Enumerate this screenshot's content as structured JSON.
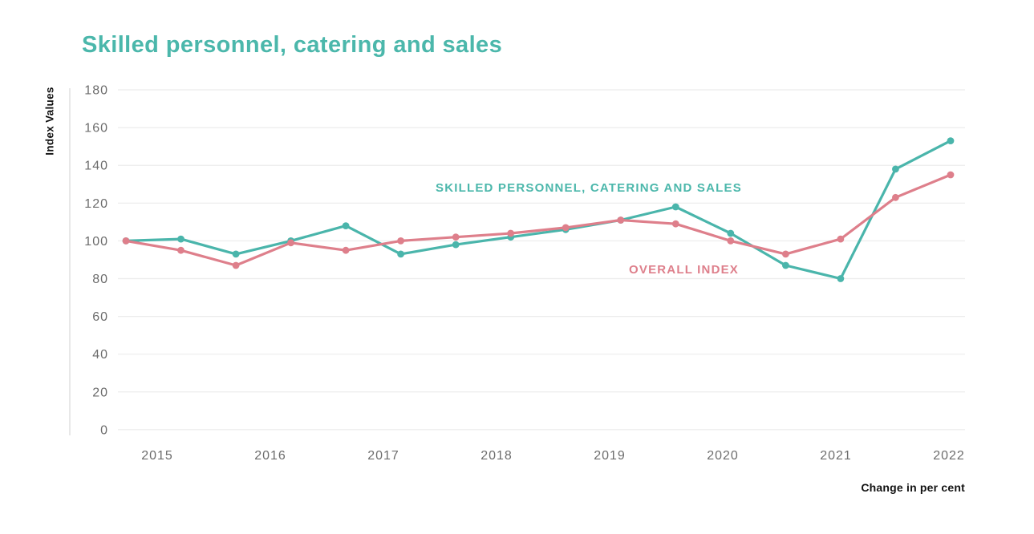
{
  "page": {
    "title": "Skilled personnel, catering and sales"
  },
  "chart_data": {
    "type": "line",
    "title": "Skilled personnel, catering and sales",
    "ylabel": "Index Values",
    "xlabel": "Change in per cent",
    "x": [
      2015.0,
      2015.5,
      2016.0,
      2016.5,
      2017.0,
      2017.5,
      2018.0,
      2018.5,
      2019.0,
      2019.5,
      2020.0,
      2020.5,
      2021.0,
      2021.5,
      2022.0,
      2022.5
    ],
    "year_tick_labels": [
      "2015",
      "2016",
      "2017",
      "2018",
      "2019",
      "2020",
      "2021",
      "2022"
    ],
    "y_ticks": [
      0,
      20,
      40,
      60,
      80,
      100,
      120,
      140,
      160,
      180
    ],
    "ylim": [
      0,
      180
    ],
    "grid": true,
    "legend_position": "inline-annotations",
    "series": [
      {
        "name": "SKILLED PERSONNEL, CATERING AND SALES",
        "color": "#4ab5ab",
        "values": [
          100,
          101,
          93,
          100,
          108,
          93,
          98,
          102,
          106,
          111,
          118,
          104,
          87,
          80,
          138,
          153
        ]
      },
      {
        "name": "OVERALL INDEX",
        "color": "#de7f8b",
        "values": [
          100,
          95,
          87,
          99,
          95,
          100,
          102,
          104,
          107,
          111,
          109,
          100,
          93,
          101,
          123,
          135
        ]
      }
    ],
    "colors": {
      "title": "#4bb7ab",
      "gridline": "#ececec",
      "axis_line": "#d8d8d8",
      "tick_label": "#6d6d6d",
      "text": "#111111"
    }
  }
}
